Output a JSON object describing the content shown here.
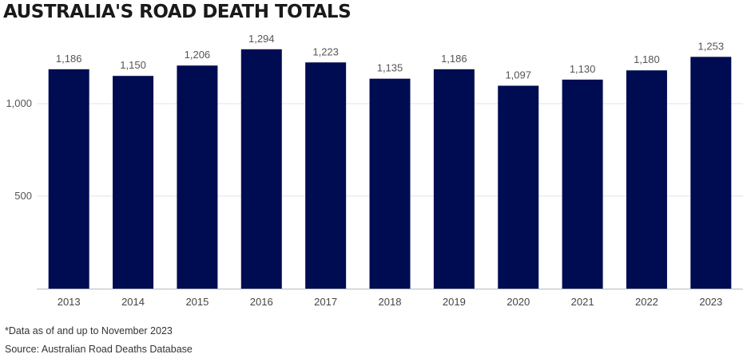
{
  "chart_data": {
    "type": "bar",
    "title": "AUSTRALIA'S ROAD DEATH TOTALS",
    "categories": [
      "2013",
      "2014",
      "2015",
      "2016",
      "2017",
      "2018",
      "2019",
      "2020",
      "2021",
      "2022",
      "2023"
    ],
    "values": [
      1186,
      1150,
      1206,
      1294,
      1223,
      1135,
      1186,
      1097,
      1130,
      1180,
      1253
    ],
    "value_labels": [
      "1,186",
      "1,150",
      "1,206",
      "1,294",
      "1,223",
      "1,135",
      "1,186",
      "1,097",
      "1,130",
      "1,180",
      "1,253"
    ],
    "yticks": [
      500,
      1000
    ],
    "ytick_labels": [
      "500",
      "1,000"
    ],
    "ylim": [
      0,
      1350
    ],
    "grid": true,
    "legend": "none",
    "bar_color": "#000c52",
    "xlabel": "",
    "ylabel": ""
  },
  "footnote": "*Data as of and up to November 2023",
  "source": "Source: Australian Road Deaths Database"
}
